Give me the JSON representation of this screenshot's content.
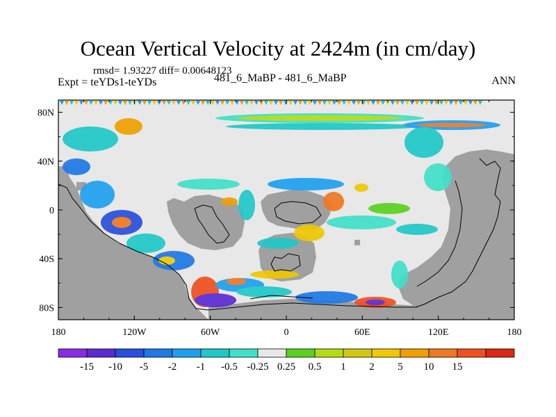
{
  "chart_data": {
    "type": "heatmap",
    "title": "Ocean Vertical Velocity at 2424m (in cm/day)",
    "stats_line": "rmsd= 1.93227 diff= 0.00648123",
    "experiment_label": "Expt = teYDs1-teYDs",
    "center_label": "481_6_MaBP - 481_6_MaBP",
    "season_label": "ANN",
    "x_range": [
      -180,
      180
    ],
    "y_range": [
      -90,
      90
    ],
    "x_ticks": [
      {
        "value": -180,
        "label": "180"
      },
      {
        "value": -120,
        "label": "120W"
      },
      {
        "value": -60,
        "label": "60W"
      },
      {
        "value": 0,
        "label": "0"
      },
      {
        "value": 60,
        "label": "60E"
      },
      {
        "value": 120,
        "label": "120E"
      },
      {
        "value": 180,
        "label": "180"
      }
    ],
    "y_ticks": [
      {
        "value": 80,
        "label": "80N"
      },
      {
        "value": 40,
        "label": "40N"
      },
      {
        "value": 0,
        "label": "0"
      },
      {
        "value": -40,
        "label": "40S"
      },
      {
        "value": -80,
        "label": "80S"
      }
    ],
    "land_color": "#a0a0a0",
    "ocean_zero_color": "#e8e8e8",
    "colorbar": {
      "colors": [
        "#8a2be2",
        "#5a2bd2",
        "#2850dc",
        "#1e78e6",
        "#1ea0f0",
        "#20c8c8",
        "#40e0c8",
        "#e8e8e8",
        "#5ad21e",
        "#b4dc14",
        "#d2c814",
        "#f0c800",
        "#f0a000",
        "#f07820",
        "#f05020",
        "#dc2814"
      ],
      "labels": [
        "-15",
        "-10",
        "-5",
        "-2",
        "-1",
        "-0.5",
        "-0.25",
        "0.25",
        "0.5",
        "1",
        "2",
        "5",
        "10",
        "15"
      ]
    }
  }
}
